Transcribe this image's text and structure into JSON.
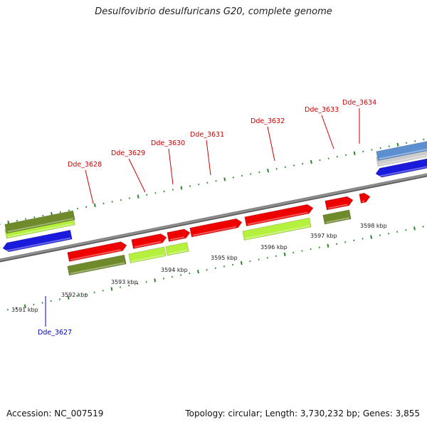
{
  "title": "Desulfovibrio desulfuricans G20, complete genome",
  "footer": {
    "accession": "Accession: NC_007519",
    "summary": "Topology: circular; Length: 3,730,232 bp; Genes: 3,855"
  },
  "colors": {
    "forward_cds": "#ee0000",
    "reverse_cds": "#1a1add",
    "olive": "#6f8a2a",
    "lime": "#b4f03c",
    "backbone": "#8c8c8c",
    "tick": "#2a8a2a",
    "label_forward": "#cc0000",
    "label_reverse": "#0000cc"
  },
  "axis_labels": [
    {
      "text": "3591 kbp",
      "kbp": 3591
    },
    {
      "text": "3592 kbp",
      "kbp": 3592
    },
    {
      "text": "3593 kbp",
      "kbp": 3593
    },
    {
      "text": "3594 kbp",
      "kbp": 3594
    },
    {
      "text": "3595 kbp",
      "kbp": 3595
    },
    {
      "text": "3596 kbp",
      "kbp": 3596
    },
    {
      "text": "3597 kbp",
      "kbp": 3597
    },
    {
      "text": "3598 kbp",
      "kbp": 3598
    }
  ],
  "genes": [
    {
      "name": "Dde_3627",
      "strand": "reverse"
    },
    {
      "name": "Dde_3628",
      "strand": "forward"
    },
    {
      "name": "Dde_3629",
      "strand": "forward"
    },
    {
      "name": "Dde_3630",
      "strand": "forward"
    },
    {
      "name": "Dde_3631",
      "strand": "forward"
    },
    {
      "name": "Dde_3632",
      "strand": "forward"
    },
    {
      "name": "Dde_3633",
      "strand": "forward"
    },
    {
      "name": "Dde_3634",
      "strand": "forward"
    }
  ]
}
